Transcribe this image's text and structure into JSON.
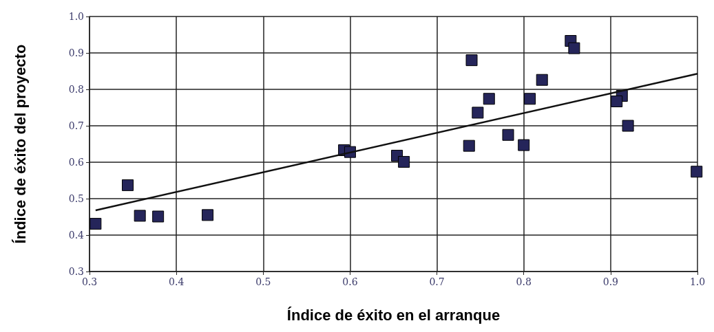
{
  "chart_data": {
    "type": "scatter",
    "xlabel": "Índice de éxito en el arranque",
    "ylabel": "Índice de éxito del proyecto",
    "xlim": [
      0.3,
      1.0
    ],
    "xticks": [
      0.3,
      0.4,
      0.5,
      0.6,
      0.7,
      0.8,
      0.9,
      {
        "value": 1.0,
        "label": "1.0"
      }
    ],
    "ylim": [
      0.3,
      1.0
    ],
    "yticks": [
      0.3,
      0.4,
      0.5,
      0.6,
      0.7,
      0.8,
      0.9,
      {
        "value": 1.0,
        "label": "1.0"
      }
    ],
    "grid": true,
    "marker": "square",
    "series": [
      {
        "color": "#25255a",
        "x": [
          0.307,
          0.344,
          0.358,
          0.379,
          0.436,
          0.593,
          0.6,
          0.654,
          0.662,
          0.74,
          0.737,
          0.747,
          0.76,
          0.782,
          0.8,
          0.807,
          0.821,
          0.854,
          0.858,
          0.913,
          0.907,
          0.92,
          0.999
        ],
        "values": [
          0.431,
          0.537,
          0.453,
          0.451,
          0.455,
          0.633,
          0.628,
          0.618,
          0.601,
          0.88,
          0.645,
          0.736,
          0.774,
          0.675,
          0.647,
          0.774,
          0.826,
          0.933,
          0.913,
          0.782,
          0.767,
          0.7,
          0.574
        ]
      },
      {
        "type": "line",
        "color": "#111111",
        "marker": "none",
        "x": [
          0.307,
          1.0
        ],
        "values": [
          0.468,
          0.843
        ]
      }
    ]
  }
}
